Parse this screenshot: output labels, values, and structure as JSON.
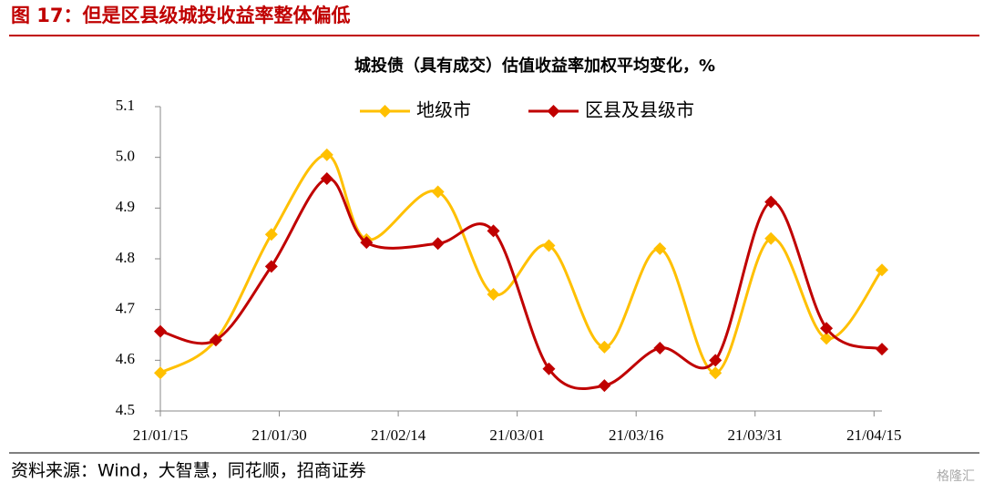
{
  "header": "图 17：但是区县级城投收益率整体偏低",
  "source": "资料来源：Wind，大智慧，同花顺，招商证券",
  "watermark": "格隆汇",
  "chart_data": {
    "type": "line",
    "title": "城投债（具有成交）估值收益率加权平均变化，%",
    "x": [
      "21/01/15",
      "21/01/22",
      "21/01/29",
      "21/02/05",
      "21/02/10",
      "21/02/19",
      "21/02/26",
      "21/03/05",
      "21/03/12",
      "21/03/19",
      "21/03/26",
      "21/04/02",
      "21/04/09",
      "21/04/16"
    ],
    "series": [
      {
        "name": "地级市",
        "color": "#ffc000",
        "values": [
          4.575,
          4.64,
          4.848,
          5.005,
          4.838,
          4.932,
          4.73,
          4.826,
          4.626,
          4.82,
          4.575,
          4.84,
          4.643,
          4.778
        ]
      },
      {
        "name": "区县及县级市",
        "color": "#c00000",
        "values": [
          4.657,
          4.64,
          4.785,
          4.958,
          4.832,
          4.83,
          4.855,
          4.583,
          4.55,
          4.624,
          4.6,
          4.912,
          4.663,
          4.622
        ]
      }
    ],
    "xlim": [
      "21/01/15",
      "21/04/16"
    ],
    "xticks": [
      "21/01/15",
      "21/01/30",
      "21/02/14",
      "21/03/01",
      "21/03/16",
      "21/03/31",
      "21/04/15"
    ],
    "ylim": [
      4.5,
      5.1
    ],
    "yticks": [
      4.5,
      4.6,
      4.7,
      4.8,
      4.9,
      {
        "value": 5,
        "label": "5.0"
      },
      5.1
    ],
    "legend": "top"
  }
}
